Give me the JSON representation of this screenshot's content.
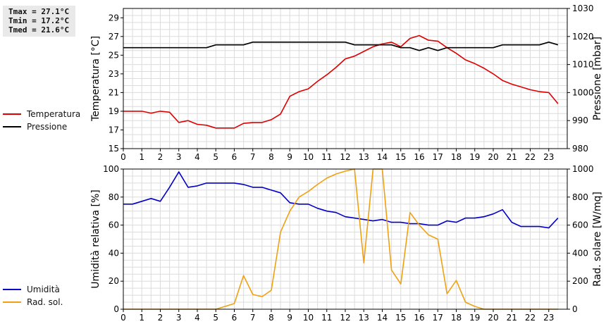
{
  "stats": {
    "tmax": "Tmax = 27.1°C",
    "tmin": "Tmin = 17.2°C",
    "tmed": "Tmed = 21.6°C"
  },
  "colors": {
    "temperature": "#dd0000",
    "pressure": "#000000",
    "humidity": "#0000c8",
    "radiation": "#f0a010"
  },
  "chart_data": [
    {
      "type": "line",
      "xlim": [
        0,
        24
      ],
      "x_ticks": [
        0,
        1,
        2,
        3,
        4,
        5,
        6,
        7,
        8,
        9,
        10,
        11,
        12,
        13,
        14,
        15,
        16,
        17,
        18,
        19,
        20,
        21,
        22,
        23
      ],
      "ylabel": "Temperatura [°C]",
      "ylim": [
        15,
        30
      ],
      "y_ticks": [
        15,
        17,
        19,
        21,
        23,
        25,
        27,
        29
      ],
      "y2label": "Pressione [mbar]",
      "y2lim": [
        980,
        1030
      ],
      "y2_ticks": [
        980,
        990,
        1000,
        1010,
        1020,
        1030
      ],
      "grid": true,
      "legend_position": "left",
      "series": [
        {
          "name": "Temperatura",
          "axis": "left",
          "x": [
            0,
            0.5,
            1,
            1.5,
            2,
            2.5,
            3,
            3.5,
            4,
            4.5,
            5,
            5.5,
            6,
            6.5,
            7,
            7.5,
            8,
            8.5,
            9,
            9.5,
            10,
            10.5,
            11,
            11.5,
            12,
            12.5,
            13,
            13.5,
            14,
            14.5,
            15,
            15.5,
            16,
            16.5,
            17,
            17.5,
            18,
            18.5,
            19,
            19.5,
            20,
            20.5,
            21,
            21.5,
            22,
            22.5,
            23,
            23.5
          ],
          "y": [
            19.0,
            19.0,
            19.0,
            18.8,
            19.0,
            18.9,
            17.8,
            18.0,
            17.6,
            17.5,
            17.2,
            17.2,
            17.2,
            17.7,
            17.8,
            17.8,
            18.1,
            18.7,
            20.6,
            21.1,
            21.4,
            22.2,
            22.9,
            23.7,
            24.6,
            24.9,
            25.4,
            25.9,
            26.2,
            26.4,
            25.9,
            26.8,
            27.1,
            26.6,
            26.5,
            25.8,
            25.2,
            24.5,
            24.1,
            23.6,
            23.0,
            22.3,
            21.9,
            21.6,
            21.3,
            21.1,
            21.0,
            19.8
          ]
        },
        {
          "name": "Pressione",
          "axis": "right",
          "x": [
            0,
            0.5,
            1,
            1.5,
            2,
            2.5,
            3,
            3.5,
            4,
            4.5,
            5,
            5.5,
            6,
            6.5,
            7,
            7.5,
            8,
            8.5,
            9,
            9.5,
            10,
            10.5,
            11,
            11.5,
            12,
            12.5,
            13,
            13.5,
            14,
            14.5,
            15,
            15.5,
            16,
            16.5,
            17,
            17.5,
            18,
            18.5,
            19,
            19.5,
            20,
            20.5,
            21,
            21.5,
            22,
            22.5,
            23,
            23.5
          ],
          "y": [
            1016,
            1016,
            1016,
            1016,
            1016,
            1016,
            1016,
            1016,
            1016,
            1016,
            1017,
            1017,
            1017,
            1017,
            1018,
            1018,
            1018,
            1018,
            1018,
            1018,
            1018,
            1018,
            1018,
            1018,
            1018,
            1017,
            1017,
            1017,
            1017,
            1017,
            1016,
            1016,
            1015,
            1016,
            1015,
            1016,
            1016,
            1016,
            1016,
            1016,
            1016,
            1017,
            1017,
            1017,
            1017,
            1017,
            1018,
            1017
          ]
        }
      ]
    },
    {
      "type": "line",
      "xlim": [
        0,
        24
      ],
      "x_ticks": [
        0,
        1,
        2,
        3,
        4,
        5,
        6,
        7,
        8,
        9,
        10,
        11,
        12,
        13,
        14,
        15,
        16,
        17,
        18,
        19,
        20,
        21,
        22,
        23
      ],
      "ylabel": "Umidità relativa [%]",
      "ylim": [
        0,
        100
      ],
      "y_ticks": [
        0,
        20,
        40,
        60,
        80,
        100
      ],
      "y2label": "Rad. solare [W/mq]",
      "y2lim": [
        0,
        1000
      ],
      "y2_ticks": [
        0,
        200,
        400,
        600,
        800,
        1000
      ],
      "grid": true,
      "legend_position": "left",
      "series": [
        {
          "name": "Umidità",
          "axis": "left",
          "x": [
            0,
            0.5,
            1,
            1.5,
            2,
            2.5,
            3,
            3.5,
            4,
            4.5,
            5,
            5.5,
            6,
            6.5,
            7,
            7.5,
            8,
            8.5,
            9,
            9.5,
            10,
            10.5,
            11,
            11.5,
            12,
            12.5,
            13,
            13.5,
            14,
            14.5,
            15,
            15.5,
            16,
            16.5,
            17,
            17.5,
            18,
            18.5,
            19,
            19.5,
            20,
            20.5,
            21,
            21.5,
            22,
            22.5,
            23,
            23.5
          ],
          "y": [
            75,
            75,
            77,
            79,
            77,
            87,
            98,
            87,
            88,
            90,
            90,
            90,
            90,
            89,
            87,
            87,
            85,
            83,
            76,
            75,
            75,
            72,
            70,
            69,
            66,
            65,
            64,
            63,
            64,
            62,
            62,
            61,
            61,
            60,
            60,
            63,
            62,
            65,
            65,
            66,
            68,
            71,
            62,
            59,
            59,
            59,
            58,
            65
          ]
        },
        {
          "name": "Rad. sol.",
          "axis": "right",
          "x": [
            0,
            0.5,
            1,
            1.5,
            2,
            2.5,
            3,
            3.5,
            4,
            4.5,
            5,
            5.5,
            6,
            6.5,
            7,
            7.5,
            8,
            8.5,
            9,
            9.5,
            10,
            10.5,
            11,
            11.5,
            12,
            12.5,
            13,
            13.5,
            14,
            14.5,
            15,
            15.5,
            16,
            16.5,
            17,
            17.5,
            18,
            18.5,
            19,
            19.5,
            20,
            20.5,
            21,
            21.5,
            22,
            22.5,
            23,
            23.5
          ],
          "y": [
            0,
            0,
            0,
            0,
            0,
            0,
            0,
            0,
            0,
            0,
            0,
            20,
            40,
            240,
            105,
            90,
            135,
            550,
            700,
            800,
            840,
            890,
            935,
            965,
            985,
            1000,
            330,
            1000,
            1000,
            280,
            180,
            690,
            600,
            530,
            500,
            110,
            205,
            50,
            20,
            0,
            0,
            0,
            0,
            0,
            0,
            0,
            0,
            0
          ]
        }
      ]
    }
  ]
}
